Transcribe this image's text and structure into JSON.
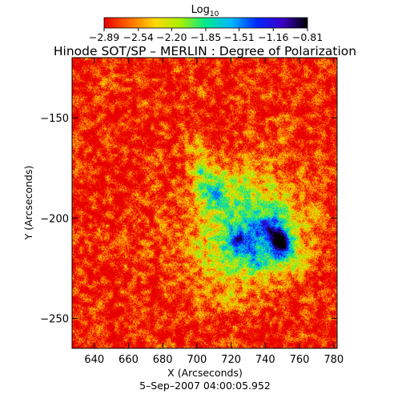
{
  "chart_data": {
    "type": "heatmap",
    "title": "Hinode SOT/SP – MERLIN : Degree of Polarization",
    "xlabel": "X (Arcseconds)",
    "ylabel": "Y (Arcseconds)",
    "footer": "5–Sep–2007 04:00:05.952",
    "colorbar": {
      "label_base": "Log",
      "label_sub": "10",
      "range": [
        -2.89,
        -0.81
      ],
      "ticks": [
        {
          "value": -2.89,
          "label": "−2.89"
        },
        {
          "value": -2.54,
          "label": "−2.54"
        },
        {
          "value": -2.2,
          "label": "−2.20"
        },
        {
          "value": -1.85,
          "label": "−1.85"
        },
        {
          "value": -1.51,
          "label": "−1.51"
        },
        {
          "value": -1.16,
          "label": "−1.16"
        },
        {
          "value": -0.81,
          "label": "−0.81"
        }
      ],
      "colors": [
        "#e80000",
        "#ff6a00",
        "#ffd800",
        "#a8f000",
        "#00e890",
        "#00b8ff",
        "#0028ff",
        "#3c00c8",
        "#000000"
      ]
    },
    "xlim": [
      627,
      782
    ],
    "ylim": [
      -265,
      -120
    ],
    "xticks": [
      {
        "value": 640,
        "label": "640"
      },
      {
        "value": 660,
        "label": "660"
      },
      {
        "value": 680,
        "label": "680"
      },
      {
        "value": 700,
        "label": "700"
      },
      {
        "value": 720,
        "label": "720"
      },
      {
        "value": 740,
        "label": "740"
      },
      {
        "value": 760,
        "label": "760"
      },
      {
        "value": 780,
        "label": "780"
      }
    ],
    "yticks": [
      {
        "value": -150,
        "label": "−150"
      },
      {
        "value": -200,
        "label": "−200"
      },
      {
        "value": -250,
        "label": "−250"
      }
    ],
    "background_value": -2.85,
    "features": [
      {
        "x": 728,
        "y": -205,
        "sx": 26,
        "sy": 18,
        "amp": 0.75,
        "rot": -0.6
      },
      {
        "x": 740,
        "y": -212,
        "sx": 16,
        "sy": 11,
        "amp": 0.55,
        "rot": -0.3
      },
      {
        "x": 712,
        "y": -186,
        "sx": 11,
        "sy": 9,
        "amp": 0.45,
        "rot": 0
      },
      {
        "x": 725,
        "y": -211,
        "sx": 6,
        "sy": 3,
        "amp": 0.7,
        "rot": -0.2
      },
      {
        "x": 747,
        "y": -210,
        "sx": 4,
        "sy": 3,
        "amp": 1.0,
        "rot": 0
      },
      {
        "x": 750,
        "y": -215,
        "sx": 4,
        "sy": 4,
        "amp": 1.1,
        "rot": 0
      },
      {
        "x": 703,
        "y": -176,
        "sx": 5,
        "sy": 3,
        "amp": 0.6,
        "rot": 0.4
      },
      {
        "x": 708,
        "y": -187,
        "sx": 5,
        "sy": 3,
        "amp": 0.6,
        "rot": 0.5
      },
      {
        "x": 743,
        "y": -203,
        "sx": 4,
        "sy": 3,
        "amp": 0.6,
        "rot": 0
      },
      {
        "x": 735,
        "y": -222,
        "sx": 5,
        "sy": 3,
        "amp": 0.45,
        "rot": 0
      },
      {
        "x": 760,
        "y": -222,
        "sx": 5,
        "sy": 4,
        "amp": 0.35,
        "rot": 0
      },
      {
        "x": 700,
        "y": -165,
        "sx": 6,
        "sy": 4,
        "amp": 0.3,
        "rot": 0
      },
      {
        "x": 648,
        "y": -132,
        "sx": 4,
        "sy": 3,
        "amp": 0.3,
        "rot": 0
      },
      {
        "x": 700,
        "y": -135,
        "sx": 3,
        "sy": 3,
        "amp": 0.25,
        "rot": 0
      },
      {
        "x": 767,
        "y": -238,
        "sx": 3,
        "sy": 3,
        "amp": 0.25,
        "rot": 0
      },
      {
        "x": 720,
        "y": -240,
        "sx": 4,
        "sy": 3,
        "amp": 0.2,
        "rot": 0
      },
      {
        "x": 675,
        "y": -170,
        "sx": 4,
        "sy": 3,
        "amp": 0.2,
        "rot": 0
      }
    ]
  }
}
